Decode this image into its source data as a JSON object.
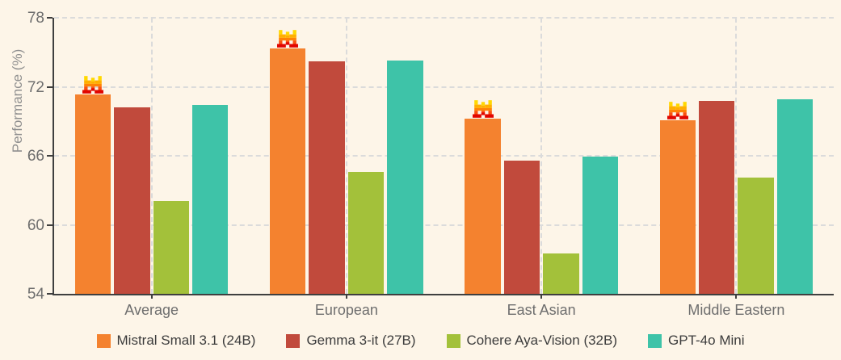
{
  "colors": {
    "background": "#FDF5E8",
    "axis": "#3F3F3F",
    "grid": "#DBDBDB",
    "tick_label": "#6E6E6E",
    "axis_label": "#8F8F8F",
    "legend_text": "#3C3C3C"
  },
  "chart_data": {
    "type": "bar",
    "title": "",
    "xlabel": "",
    "ylabel": "Performance (%)",
    "ylim": [
      54,
      78
    ],
    "yticks": [
      54,
      60,
      66,
      72,
      78
    ],
    "grid": "dashed, horizontal at yticks and vertical at category centers",
    "legend_position": "bottom",
    "categories": [
      "Average",
      "European",
      "East Asian",
      "Middle Eastern"
    ],
    "series": [
      {
        "name": "Mistral Small 3.1 (24B)",
        "color": "#F4822F",
        "crowned": true,
        "values": [
          71.3,
          75.3,
          69.2,
          69.1
        ]
      },
      {
        "name": "Gemma 3-it (27B)",
        "color": "#C14A3C",
        "crowned": false,
        "values": [
          70.2,
          74.2,
          65.6,
          70.8
        ]
      },
      {
        "name": "Cohere Aya-Vision (32B)",
        "color": "#A3C13A",
        "crowned": false,
        "values": [
          62.1,
          64.6,
          57.5,
          64.1
        ]
      },
      {
        "name": "GPT-4o Mini",
        "color": "#3EC3A8",
        "crowned": false,
        "values": [
          70.4,
          74.3,
          65.9,
          70.9
        ]
      }
    ],
    "marker": {
      "name": "mistral-logo-icon",
      "description": "pixel-art Mistral M logo above every Mistral Small 3.1 bar",
      "palette": [
        "#FFD800",
        "#FFAF00",
        "#FF8205",
        "#FA500F",
        "#E10500"
      ]
    }
  }
}
